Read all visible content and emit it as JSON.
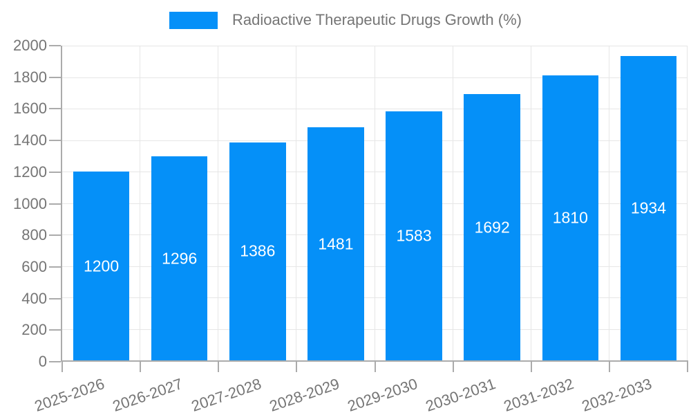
{
  "legend": {
    "label": "Radioactive Therapeutic Drugs Growth (%)"
  },
  "colors": {
    "bar": "#0590f8",
    "bar_label": "#ffffff",
    "axis_line": "#ababab",
    "gridline": "#e6e6e6",
    "label_text": "#757575",
    "background": "#ffffff"
  },
  "chart_data": {
    "type": "bar",
    "title": "Radioactive Therapeutic Drugs Growth (%)",
    "categories": [
      "2025-2026",
      "2026-2027",
      "2027-2028",
      "2028-2029",
      "2029-2030",
      "2030-2031",
      "2031-2032",
      "2032-2033"
    ],
    "series": [
      {
        "name": "Radioactive Therapeutic Drugs Growth (%)",
        "values": [
          1200,
          1296,
          1386,
          1481,
          1583,
          1692,
          1810,
          1934
        ]
      }
    ],
    "values": [
      1200,
      1296,
      1386,
      1481,
      1583,
      1692,
      1810,
      1934
    ],
    "bar_labels": [
      "1200",
      "1296",
      "1386",
      "1481",
      "1583",
      "1692",
      "1810",
      "1934"
    ],
    "xlabel": "",
    "ylabel": "",
    "ylim": [
      0,
      2000
    ],
    "yticks": [
      0,
      200,
      400,
      600,
      800,
      1000,
      1200,
      1400,
      1600,
      1800,
      2000
    ],
    "grid": true,
    "legend_position": "top-center",
    "x_tick_rotation_deg": -19
  }
}
